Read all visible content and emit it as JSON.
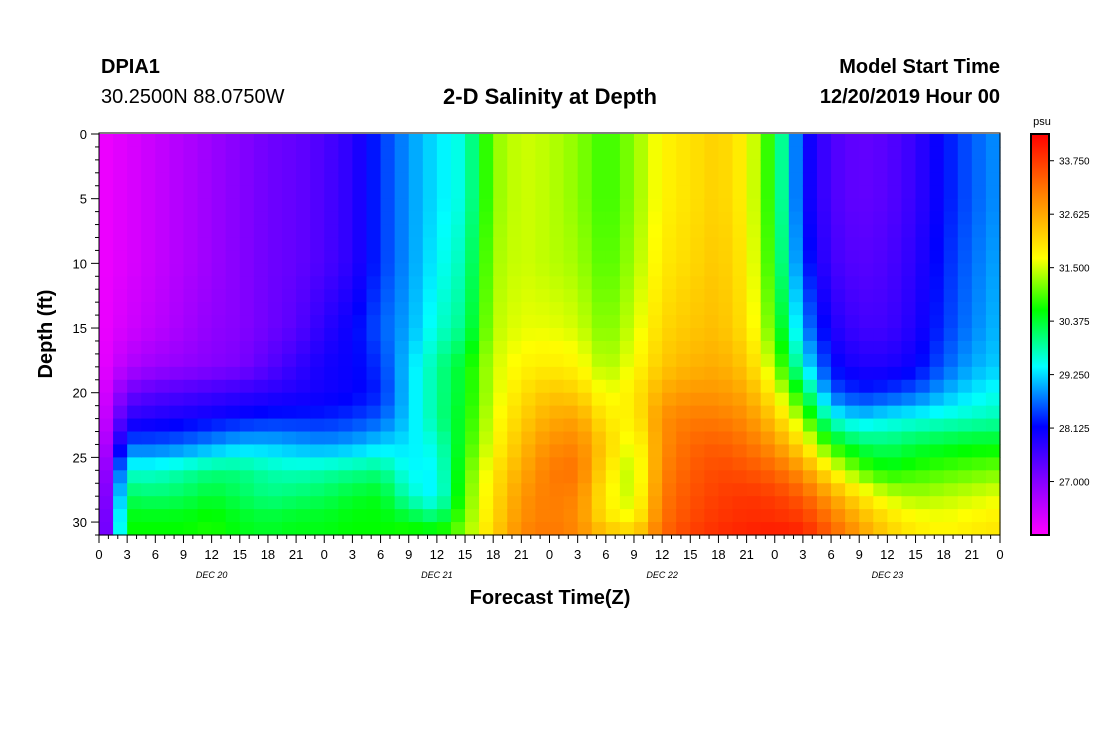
{
  "header": {
    "station": "DPIA1",
    "coords": "30.2500N 88.0750W",
    "title": "2-D Salinity at Depth",
    "start_label": "Model Start Time",
    "start_value": "12/20/2019 Hour 00"
  },
  "chart_data": {
    "type": "heatmap",
    "title": "2-D Salinity at Depth",
    "xlabel": "Forecast Time(Z)",
    "ylabel": "Depth (ft)",
    "x_range_hours": [
      0,
      96
    ],
    "x_ticks": [
      "0",
      "3",
      "6",
      "9",
      "12",
      "15",
      "18",
      "21",
      "0",
      "3",
      "6",
      "9",
      "12",
      "15",
      "18",
      "21",
      "0",
      "3",
      "6",
      "9",
      "12",
      "15",
      "18",
      "21",
      "0",
      "3",
      "6",
      "9",
      "12",
      "15",
      "18",
      "21",
      "0"
    ],
    "day_labels": [
      {
        "label": "DEC 20",
        "hour": 12
      },
      {
        "label": "DEC 21",
        "hour": 36
      },
      {
        "label": "DEC 22",
        "hour": 60
      },
      {
        "label": "DEC 23",
        "hour": 84
      }
    ],
    "y_range": [
      0,
      31
    ],
    "y_ticks": [
      "0",
      "5",
      "10",
      "15",
      "20",
      "25",
      "30"
    ],
    "colorbar": {
      "unit": "psu",
      "min": 25.875,
      "max": 34.3125,
      "ticks": [
        "33.750",
        "32.625",
        "31.500",
        "30.375",
        "29.250",
        "28.125",
        "27.000"
      ],
      "tick_values": [
        33.75,
        32.625,
        31.5,
        30.375,
        29.25,
        28.125,
        27.0
      ]
    },
    "grid_hours": [
      0,
      3,
      6,
      9,
      12,
      15,
      18,
      21,
      24,
      27,
      30,
      33,
      36,
      39,
      42,
      45,
      48,
      51,
      54,
      57,
      60,
      63,
      66,
      69,
      72,
      75,
      78,
      81,
      84,
      87,
      90,
      93,
      96
    ],
    "grid_depths_ft": [
      0,
      5,
      10,
      15,
      18,
      20,
      22,
      24,
      26,
      28,
      30,
      31
    ],
    "salinity_psu": [
      [
        26.0,
        26.0,
        26.0,
        26.0,
        26.0,
        26.0,
        26.0,
        26.0,
        26.0,
        26.0,
        26.0,
        26.0
      ],
      [
        26.2,
        26.2,
        26.2,
        26.3,
        26.6,
        27.2,
        27.8,
        28.6,
        29.6,
        30.2,
        30.6,
        30.6
      ],
      [
        26.4,
        26.4,
        26.4,
        26.5,
        26.8,
        27.4,
        27.9,
        28.6,
        29.6,
        30.1,
        30.6,
        30.6
      ],
      [
        26.6,
        26.6,
        26.6,
        26.7,
        26.9,
        27.5,
        28.0,
        28.7,
        29.8,
        30.2,
        30.6,
        30.6
      ],
      [
        26.8,
        26.8,
        26.8,
        26.9,
        27.0,
        27.6,
        28.1,
        28.9,
        30.0,
        30.4,
        30.7,
        30.7
      ],
      [
        27.0,
        27.0,
        27.0,
        27.0,
        27.1,
        27.7,
        28.2,
        29.1,
        30.0,
        30.2,
        30.5,
        30.5
      ],
      [
        27.2,
        27.2,
        27.2,
        27.2,
        27.4,
        27.8,
        28.3,
        29.1,
        29.8,
        30.0,
        30.4,
        30.4
      ],
      [
        27.3,
        27.3,
        27.3,
        27.4,
        27.7,
        27.9,
        28.3,
        29.0,
        29.7,
        30.1,
        30.5,
        30.5
      ],
      [
        27.5,
        27.5,
        27.5,
        27.8,
        28.0,
        28.0,
        28.3,
        28.9,
        29.8,
        30.2,
        30.5,
        30.5
      ],
      [
        27.8,
        27.8,
        27.8,
        28.1,
        28.1,
        28.1,
        28.4,
        29.0,
        29.9,
        30.4,
        30.6,
        30.6
      ],
      [
        28.4,
        28.4,
        28.4,
        28.6,
        28.4,
        28.3,
        28.6,
        29.2,
        30.0,
        30.5,
        30.6,
        30.6
      ],
      [
        28.9,
        28.9,
        28.9,
        29.0,
        29.2,
        29.2,
        29.2,
        29.3,
        29.4,
        29.7,
        30.5,
        30.8
      ],
      [
        29.3,
        29.3,
        29.4,
        29.6,
        29.9,
        29.9,
        29.9,
        29.6,
        29.4,
        29.3,
        30.2,
        30.8
      ],
      [
        29.6,
        29.6,
        29.8,
        30.0,
        30.5,
        30.5,
        30.6,
        30.7,
        30.9,
        31.0,
        31.1,
        31.2
      ],
      [
        31.2,
        31.2,
        31.3,
        31.4,
        31.5,
        31.5,
        31.6,
        31.7,
        31.9,
        32.0,
        32.1,
        32.2
      ],
      [
        31.5,
        31.5,
        31.5,
        31.6,
        31.8,
        32.0,
        32.2,
        32.4,
        32.6,
        32.8,
        32.9,
        33.0
      ],
      [
        31.4,
        31.4,
        31.4,
        31.6,
        31.9,
        32.3,
        32.6,
        32.9,
        33.1,
        33.1,
        33.1,
        33.2
      ],
      [
        31.2,
        31.2,
        31.3,
        31.5,
        31.8,
        32.2,
        32.7,
        33.0,
        33.2,
        33.0,
        32.9,
        33.0
      ],
      [
        30.8,
        30.8,
        30.9,
        31.1,
        31.3,
        31.6,
        31.9,
        32.2,
        32.0,
        31.8,
        32.0,
        32.5
      ],
      [
        31.2,
        31.2,
        31.3,
        31.5,
        31.7,
        31.9,
        31.8,
        31.5,
        31.3,
        31.4,
        31.7,
        32.3
      ],
      [
        31.8,
        31.8,
        31.9,
        32.1,
        32.3,
        32.6,
        32.9,
        32.9,
        33.0,
        33.1,
        33.2,
        33.3
      ],
      [
        32.0,
        32.0,
        32.1,
        32.3,
        32.5,
        32.8,
        33.1,
        33.3,
        33.4,
        33.5,
        33.6,
        33.7
      ],
      [
        32.2,
        32.2,
        32.3,
        32.4,
        32.6,
        32.8,
        33.1,
        33.4,
        33.6,
        33.7,
        33.8,
        33.9
      ],
      [
        31.8,
        31.8,
        31.9,
        32.0,
        32.3,
        32.6,
        32.9,
        33.2,
        33.5,
        33.8,
        33.9,
        34.0
      ],
      [
        30.5,
        30.5,
        30.6,
        30.9,
        31.3,
        31.8,
        32.3,
        32.8,
        33.3,
        33.7,
        33.9,
        34.1
      ],
      [
        28.2,
        28.2,
        28.4,
        28.9,
        29.5,
        30.4,
        31.2,
        32.0,
        32.8,
        33.4,
        33.8,
        34.0
      ],
      [
        27.5,
        27.5,
        27.6,
        27.9,
        28.2,
        28.6,
        29.6,
        30.7,
        31.8,
        32.7,
        33.2,
        33.4
      ],
      [
        27.3,
        27.3,
        27.4,
        27.6,
        27.9,
        28.3,
        29.2,
        30.2,
        31.0,
        32.0,
        32.6,
        32.8
      ],
      [
        27.4,
        27.4,
        27.5,
        27.6,
        27.9,
        28.4,
        29.4,
        30.1,
        30.6,
        31.5,
        32.1,
        32.2
      ],
      [
        27.7,
        27.7,
        27.8,
        27.9,
        28.1,
        28.6,
        29.5,
        30.3,
        30.8,
        31.3,
        31.8,
        31.9
      ],
      [
        28.2,
        28.2,
        28.3,
        28.4,
        28.6,
        29.0,
        29.6,
        30.4,
        30.9,
        31.4,
        31.7,
        31.8
      ],
      [
        28.6,
        28.6,
        28.7,
        28.8,
        29.0,
        29.3,
        29.7,
        30.5,
        31.0,
        31.5,
        31.8,
        31.9
      ],
      [
        28.9,
        28.9,
        29.0,
        29.1,
        29.2,
        29.5,
        29.8,
        30.5,
        31.1,
        31.6,
        31.9,
        32.0
      ]
    ]
  }
}
